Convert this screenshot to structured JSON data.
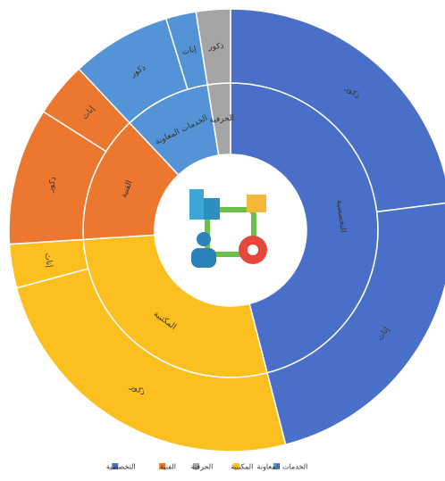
{
  "chart_data": {
    "type": "sunburst",
    "series": [
      {
        "name": "التخصصية",
        "color": "#4a6fc8",
        "value": 46,
        "children": [
          {
            "name": "ذكور",
            "value": 23
          },
          {
            "name": "إناث",
            "value": 23
          }
        ]
      },
      {
        "name": "المكتبية",
        "color": "#fbbf1f",
        "value": 28,
        "children": [
          {
            "name": "ذكور",
            "value": 24.8
          },
          {
            "name": "إناث",
            "value": 3.2
          }
        ]
      },
      {
        "name": "الفنية",
        "color": "#ec772f",
        "value": 14,
        "children": [
          {
            "name": "ذكور",
            "value": 10
          },
          {
            "name": "إناث",
            "value": 4
          }
        ]
      },
      {
        "name": "الخدمات المعاونة",
        "color": "#5393d6",
        "value": 9.5,
        "children": [
          {
            "name": "ذكور",
            "value": 7.3
          },
          {
            "name": "إناث",
            "value": 2.2
          }
        ]
      },
      {
        "name": "الحرفية",
        "color": "#a5a5a5",
        "value": 2.5,
        "children": [
          {
            "name": "ذكور",
            "value": 2.5
          }
        ]
      }
    ],
    "legend": [
      {
        "name": "التخصصية",
        "color": "#4a6fc8"
      },
      {
        "name": "الفنية",
        "color": "#ec772f"
      },
      {
        "name": "الحرفية",
        "color": "#a5a5a5"
      },
      {
        "name": "المكتبية",
        "color": "#fbbf1f"
      },
      {
        "name": "الخدمات المعاونة",
        "color": "#5393d6"
      }
    ]
  }
}
